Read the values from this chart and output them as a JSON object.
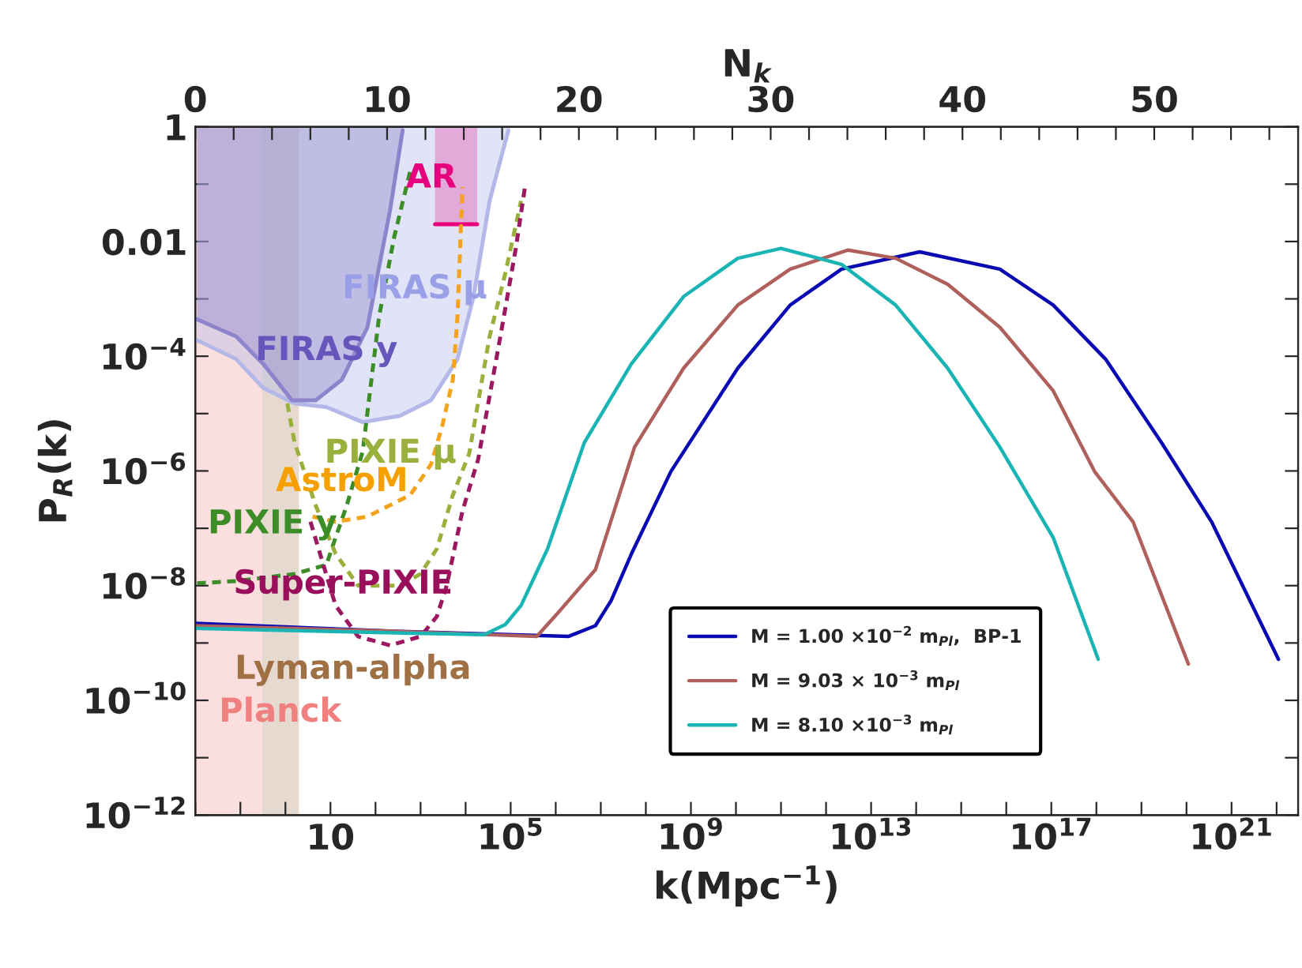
{
  "chart_data": {
    "type": "line",
    "xlabel": "k(Mpc$^{−1}$)",
    "ylabel": "P$_{R}$(k)",
    "x2label": "N$_{k}$",
    "log": "xy",
    "xlim": [
      0.01,
      3e+22
    ],
    "ylim": [
      1e-12,
      1
    ],
    "x2lim": [
      0,
      57.5
    ],
    "xticks": [
      {
        "value": 0.01,
        "label": null
      },
      {
        "value": 0.1,
        "label": null
      },
      {
        "value": 1,
        "label": null
      },
      {
        "value": 10,
        "label": "10"
      },
      {
        "value": 100,
        "label": null
      },
      {
        "value": 1000,
        "label": null
      },
      {
        "value": 10000,
        "label": null
      },
      {
        "value": 100000,
        "label": "10$^{5}$"
      },
      {
        "value": 1000000.0,
        "label": null
      },
      {
        "value": 10000000.0,
        "label": null
      },
      {
        "value": 100000000.0,
        "label": null
      },
      {
        "value": 1000000000.0,
        "label": "10$^{9}$"
      },
      {
        "value": 10000000000.0,
        "label": null
      },
      {
        "value": 100000000000.0,
        "label": null
      },
      {
        "value": 1000000000000.0,
        "label": null
      },
      {
        "value": 10000000000000.0,
        "label": "10$^{13}$"
      },
      {
        "value": 100000000000000.0,
        "label": null
      },
      {
        "value": 1000000000000000.0,
        "label": null
      },
      {
        "value": 1e+16,
        "label": null
      },
      {
        "value": 1e+17,
        "label": "10$^{17}$"
      },
      {
        "value": 1e+18,
        "label": null
      },
      {
        "value": 1e+19,
        "label": null
      },
      {
        "value": 1e+20,
        "label": null
      },
      {
        "value": 1e+21,
        "label": "10$^{21}$"
      },
      {
        "value": 1e+22,
        "label": null
      }
    ],
    "yticks": [
      {
        "value": 1e-12,
        "label": "10$^{−12}$"
      },
      {
        "value": 1e-11,
        "label": null
      },
      {
        "value": 1e-10,
        "label": "10$^{−10}$"
      },
      {
        "value": 1e-09,
        "label": null
      },
      {
        "value": 1e-08,
        "label": "10$^{−8}$"
      },
      {
        "value": 1e-07,
        "label": null
      },
      {
        "value": 1e-06,
        "label": "10$^{−6}$"
      },
      {
        "value": 1e-05,
        "label": null
      },
      {
        "value": 0.0001,
        "label": "10$^{−4}$"
      },
      {
        "value": 0.001,
        "label": null
      },
      {
        "value": 0.01,
        "label": "0.01"
      },
      {
        "value": 0.1,
        "label": null
      },
      {
        "value": 1,
        "label": "1"
      }
    ],
    "x2ticks": [
      0,
      {
        "value": 2,
        "label": null
      },
      {
        "value": 4,
        "label": null
      },
      {
        "value": 6,
        "label": null
      },
      {
        "value": 8,
        "label": null
      },
      10,
      {
        "value": 12,
        "label": null
      },
      {
        "value": 14,
        "label": null
      },
      {
        "value": 16,
        "label": null
      },
      {
        "value": 18,
        "label": null
      },
      20,
      {
        "value": 22,
        "label": null
      },
      {
        "value": 24,
        "label": null
      },
      {
        "value": 26,
        "label": null
      },
      {
        "value": 28,
        "label": null
      },
      30,
      {
        "value": 32,
        "label": null
      },
      {
        "value": 34,
        "label": null
      },
      {
        "value": 36,
        "label": null
      },
      {
        "value": 38,
        "label": null
      },
      40,
      {
        "value": 42,
        "label": null
      },
      {
        "value": 44,
        "label": null
      },
      {
        "value": 46,
        "label": null
      },
      {
        "value": 48,
        "label": null
      },
      50,
      {
        "value": 52,
        "label": null
      },
      {
        "value": 54,
        "label": null
      },
      {
        "value": 56,
        "label": null
      }
    ],
    "bands": [
      {
        "axis": "x",
        "from": 0.01,
        "to": 0.3,
        "label": "Planck",
        "color": "#fbdede"
      },
      {
        "axis": "x",
        "from": 0.3,
        "to": 2,
        "label": "Lyman-alpha",
        "color": "#e6dad0"
      }
    ],
    "series": [
      {
        "name": "FIRAS μ",
        "color": "#b4b8e8",
        "x": [
          0.011,
          0.081,
          0.32,
          1.6,
          8.1,
          52,
          340,
          1700,
          6600,
          15000,
          34000,
          89000
        ],
        "values": [
          0.00019,
          8.9e-05,
          2.8e-05,
          1.5e-05,
          1.3e-05,
          7.1e-06,
          9.1e-06,
          1.7e-05,
          8.9e-05,
          0.0011,
          0.051,
          0.87
        ],
        "lower": [
          0.00019,
          8.9e-05,
          2.8e-05,
          1.5e-05,
          1.3e-05,
          7.1e-06,
          9.1e-06,
          1.7e-05,
          8.9e-05,
          0.0011,
          0.051,
          0.87
        ],
        "upper": [
          1,
          1,
          1,
          1,
          1,
          1,
          1,
          1,
          1,
          1,
          1,
          1
        ]
      },
      {
        "name": "FIRAS y",
        "color": "#8e84cc",
        "x": [
          0.011,
          0.081,
          0.32,
          1.4,
          4.7,
          18,
          66,
          210,
          400
        ],
        "values": [
          0.00044,
          0.00022,
          7.4e-05,
          1.7e-05,
          1.7e-05,
          3.9e-05,
          0.00032,
          0.035,
          0.87
        ],
        "lower": [
          0.00044,
          0.00022,
          7.4e-05,
          1.7e-05,
          1.7e-05,
          3.9e-05,
          0.00032,
          0.035,
          0.87
        ],
        "upper": [
          1,
          1,
          1,
          1,
          1,
          1,
          1,
          1,
          1
        ]
      },
      {
        "name": "AR",
        "color": "#e6007e",
        "x": [
          2100,
          18000
        ],
        "values": [
          0.02,
          0.02
        ],
        "lower": [
          0.02,
          0.02
        ],
        "upper": [
          1,
          1
        ]
      },
      {
        "name": "PIXIE y",
        "line_style": "dashed",
        "color": "#3c8c28",
        "x": [
          0.011,
          0.081,
          1.6,
          8.1,
          13,
          23,
          52,
          120,
          260,
          590
        ],
        "values": [
          1.1e-08,
          1.2e-08,
          1.6e-08,
          2.3e-08,
          6.9e-08,
          2.5e-07,
          2.2e-06,
          0.00049,
          0.012,
          0.17
        ]
      },
      {
        "name": "PIXIE μ",
        "line_style": "dashed",
        "color": "#9ab03c",
        "x": [
          1.1,
          1.6,
          4.7,
          13,
          41,
          340,
          1000,
          2300,
          5200,
          12000,
          34000,
          76000,
          170000
        ],
        "values": [
          1.5e-05,
          3.1e-06,
          2.5e-07,
          3.6e-08,
          1e-08,
          1e-08,
          1.6e-08,
          4.4e-08,
          3.8e-07,
          2e-06,
          0.00022,
          0.0028,
          0.051
        ]
      },
      {
        "name": "AstroM",
        "line_style": "dashed",
        "color": "#f5a31a",
        "x": [
          4,
          13,
          66,
          590,
          1700,
          3000,
          5200,
          6600,
          8500
        ],
        "values": [
          1.6e-07,
          1.3e-07,
          1.6e-07,
          3.8e-07,
          1.3e-06,
          5.9e-06,
          3.9e-05,
          0.00049,
          0.089
        ]
      },
      {
        "name": "Super-PIXIE",
        "line_style": "dashed",
        "color": "#9c1860",
        "x": [
          3.6,
          13,
          41,
          210,
          1000,
          2300,
          3800,
          8500,
          19000,
          59000,
          130000,
          210000
        ],
        "values": [
          1.3e-07,
          4.5e-09,
          1.3e-09,
          9.1e-10,
          1.3e-09,
          2.9e-09,
          1e-08,
          2e-07,
          1.6e-06,
          0.00022,
          0.0076,
          0.095
        ]
      },
      {
        "name": "M = 1.00 ×10$^{−2}$ m$_{Pl}$,  BP-1",
        "line_style": "solid",
        "color": "#0a0ab4",
        "x": [
          0.01,
          260,
          1900000.0,
          7600000.0,
          17000000.0,
          48000000.0,
          360000000.0,
          11000000000.0,
          160000000000.0,
          2200000000000.0,
          120000000000000.0,
          7200000000000000.0,
          1.1e+17,
          1.6e+18,
          2.8e+19,
          3.6e+20,
          1.1e+22
        ],
        "values": [
          2.2e-09,
          1.6e-09,
          1.3e-09,
          2e-09,
          5.5e-09,
          3.6e-08,
          9.8e-07,
          6.2e-05,
          0.00078,
          0.0033,
          0.0066,
          0.0033,
          0.00078,
          8.9e-05,
          3.1e-06,
          1.3e-07,
          5.2e-10
        ]
      },
      {
        "name": "M = 9.03 × 10$^{−3}$ m$_{Pl}$",
        "line_style": "solid",
        "color": "#b0605c",
        "x": [
          0.01,
          260,
          380000.0,
          1100000.0,
          7600000.0,
          56000000.0,
          690000000.0,
          11000000000.0,
          160000000000.0,
          3100000000000.0,
          35000000000000.0,
          500000000000000.0,
          7200000000000000.0,
          1.1e+17,
          9.1e+17,
          6.5e+18,
          1.1e+20
        ],
        "values": [
          2e-09,
          1.6e-09,
          1.3e-09,
          3.3e-09,
          1.9e-08,
          2.6e-06,
          6.2e-05,
          0.00078,
          0.0033,
          0.0071,
          0.0051,
          0.0018,
          0.00032,
          2.5e-05,
          9.8e-07,
          1.3e-07,
          4.3e-10
        ]
      },
      {
        "name": "M = 8.10 ×10$^{−3}$ m$_{Pl}$",
        "line_style": "solid",
        "color": "#1ab4b4",
        "x": [
          0.01,
          260,
          26000,
          76000,
          170000,
          660000,
          4300000.0,
          48000000.0,
          690000000.0,
          11000000000.0,
          100000000000.0,
          2200000000000.0,
          35000000000000.0,
          500000000000000.0,
          7200000000000000.0,
          1.1e+17,
          1.1e+18
        ],
        "values": [
          1.8e-09,
          1.5e-09,
          1.4e-09,
          2.1e-09,
          4.5e-09,
          4.4e-08,
          3.1e-06,
          7.4e-05,
          0.0011,
          0.0051,
          0.0076,
          0.004,
          0.00078,
          6.2e-05,
          2.6e-06,
          6.9e-08,
          5.2e-10
        ]
      }
    ],
    "legend": "bottom right",
    "grid": false
  }
}
